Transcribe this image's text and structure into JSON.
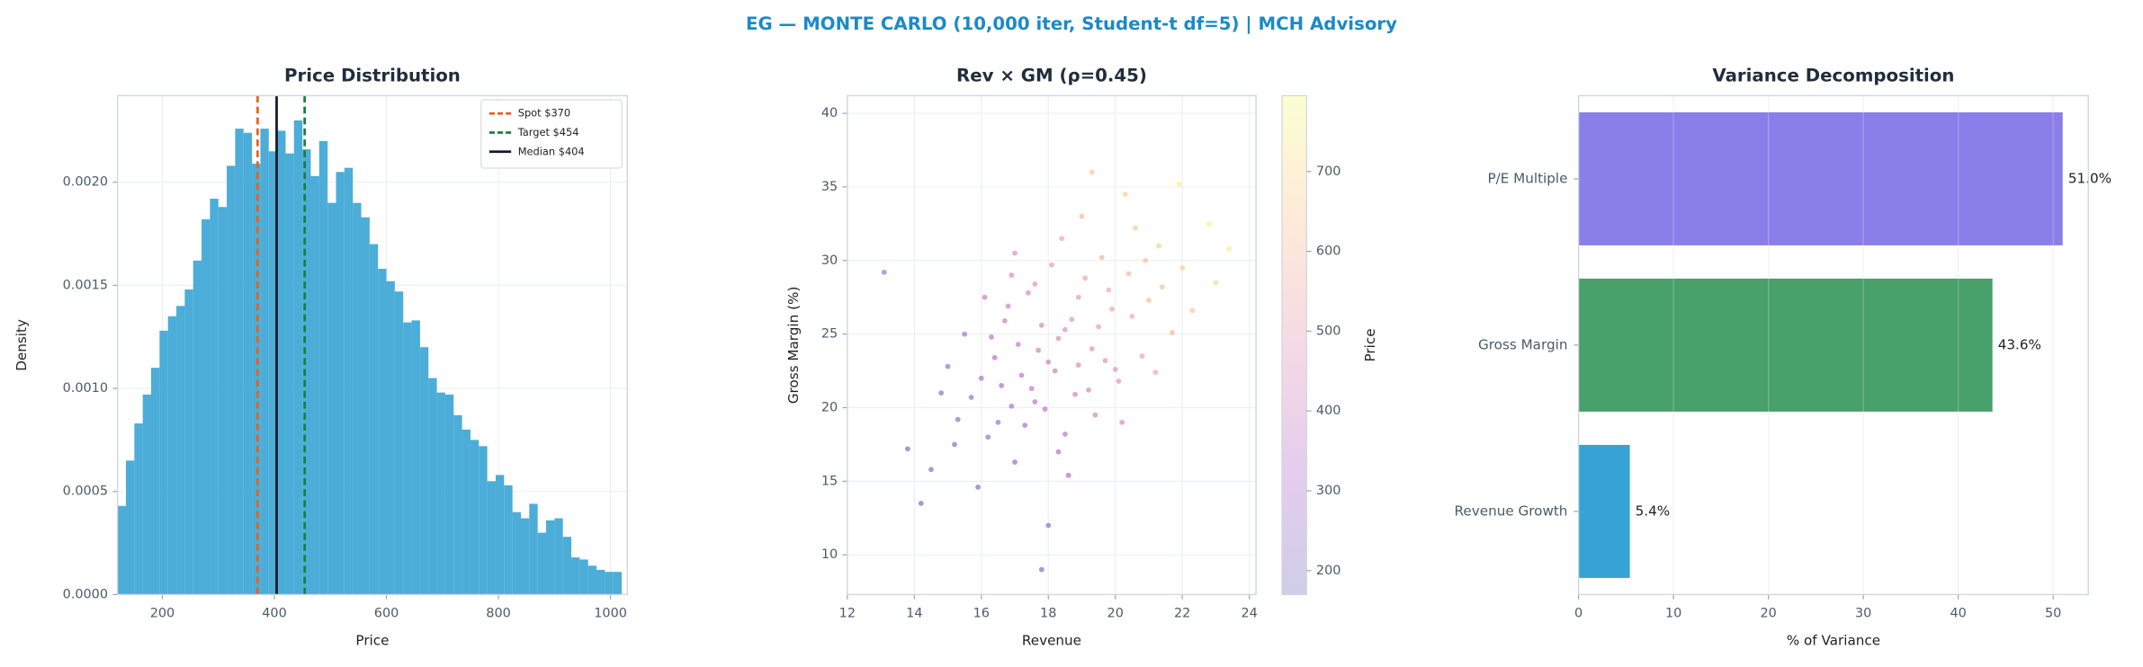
{
  "title": "EG — MONTE CARLO (10,000 iter, Student-t df=5) | MCH Advisory",
  "chart_data": [
    {
      "type": "histogram",
      "title": "Price Distribution",
      "xlabel": "Price",
      "ylabel": "Density",
      "color": "#4badd8",
      "bins": [
        120,
        135,
        150,
        165,
        180,
        195,
        210,
        225,
        240,
        255,
        270,
        285,
        300,
        315,
        330,
        345,
        360,
        375,
        390,
        405,
        420,
        435,
        450,
        465,
        480,
        495,
        510,
        525,
        540,
        555,
        570,
        585,
        600,
        615,
        630,
        645,
        660,
        675,
        690,
        705,
        720,
        735,
        750,
        765,
        780,
        795,
        810,
        825,
        840,
        855,
        870,
        885,
        900,
        915,
        930,
        945,
        960,
        975,
        990,
        1005,
        1020
      ],
      "values": [
        0.00043,
        0.00065,
        0.00083,
        0.00097,
        0.0011,
        0.00128,
        0.00135,
        0.0014,
        0.00148,
        0.00162,
        0.00182,
        0.00192,
        0.00188,
        0.00208,
        0.00226,
        0.00224,
        0.00209,
        0.00226,
        0.00215,
        0.00225,
        0.00214,
        0.0023,
        0.00216,
        0.00203,
        0.0022,
        0.0019,
        0.00205,
        0.00207,
        0.0019,
        0.00183,
        0.0017,
        0.00158,
        0.00152,
        0.00147,
        0.00132,
        0.00133,
        0.0012,
        0.00105,
        0.00098,
        0.00097,
        0.00087,
        0.0008,
        0.00075,
        0.00072,
        0.00055,
        0.00058,
        0.00053,
        0.0004,
        0.00037,
        0.00044,
        0.0003,
        0.00036,
        0.00037,
        0.00028,
        0.00018,
        0.00017,
        0.00014,
        0.00012,
        0.00011,
        0.00011
      ],
      "xlim": [
        120,
        1030
      ],
      "ylim": [
        0,
        0.00242
      ],
      "xticks": [
        200,
        400,
        600,
        800,
        1000
      ],
      "yticks": [
        {
          "value": 0,
          "label": "0.0000"
        },
        {
          "value": 0.0005,
          "label": "0.0005"
        },
        {
          "value": 0.001,
          "label": "0.0010"
        },
        {
          "value": 0.0015,
          "label": "0.0015"
        },
        {
          "value": 0.002,
          "label": "0.0020"
        }
      ],
      "grid": true,
      "legend": "upper right",
      "lines": [
        {
          "name": "Spot $370",
          "value": 370,
          "color": "#e8601c",
          "style": "dashed"
        },
        {
          "name": "Target $454",
          "value": 454,
          "color": "#1b7f3b",
          "style": "dashed"
        },
        {
          "name": "Median $404",
          "value": 404,
          "color": "#111827",
          "style": "solid"
        }
      ]
    },
    {
      "type": "scatter",
      "title": "Rev × GM (ρ=0.45)",
      "xlabel": "Revenue",
      "ylabel": "Gross Margin (%)",
      "x": [
        18.2,
        16.5,
        19.8,
        17.1,
        20.5,
        15.2,
        21.3,
        18.9,
        17.6,
        16.0,
        19.3,
        22.0,
        14.5,
        18.5,
        17.8,
        20.1,
        16.8,
        19.0,
        15.7,
        21.0,
        18.0,
        17.3,
        19.6,
        16.3,
        20.8,
        13.8,
        18.7,
        17.5,
        22.8,
        19.4,
        16.9,
        18.3,
        15.0,
        20.3,
        17.0,
        21.7,
        18.8,
        16.2,
        19.1,
        17.7,
        14.2,
        23.4,
        18.1,
        16.6,
        20.0,
        17.4,
        19.5,
        15.5,
        18.6,
        21.4,
        17.9,
        16.4,
        20.6,
        19.2,
        15.9,
        18.4,
        22.3,
        17.2,
        13.1,
        20.9,
        18.0,
        16.7,
        19.7,
        21.9,
        17.6,
        15.3,
        18.9,
        20.2,
        16.1,
        19.9,
        14.8,
        18.3,
        23.0,
        17.0,
        19.3,
        16.9,
        21.2,
        18.5,
        17.8,
        20.4
      ],
      "values": [
        22.5,
        19.0,
        28.0,
        24.3,
        26.2,
        17.5,
        31.0,
        27.5,
        20.4,
        22.0,
        24.0,
        29.5,
        15.8,
        18.2,
        25.6,
        21.8,
        26.9,
        33.0,
        20.7,
        27.3,
        23.1,
        18.8,
        30.2,
        24.8,
        23.5,
        17.2,
        26.0,
        21.3,
        32.5,
        19.5,
        29.0,
        24.7,
        22.8,
        34.5,
        16.3,
        25.1,
        20.9,
        18.0,
        28.8,
        23.9,
        13.5,
        30.8,
        29.7,
        21.5,
        22.6,
        27.8,
        25.5,
        25.0,
        15.4,
        28.2,
        19.9,
        23.4,
        32.2,
        21.2,
        14.6,
        31.5,
        26.6,
        22.2,
        29.2,
        30.0,
        12.0,
        25.9,
        23.2,
        35.2,
        28.4,
        19.2,
        22.9,
        19.0,
        27.5,
        26.7,
        21.0,
        17.0,
        28.5,
        30.5,
        36.0,
        20.1,
        22.4,
        25.3,
        9.0,
        29.1
      ],
      "color_values": [
        401,
        272,
        556,
        379,
        560,
        191,
        668,
        508,
        343,
        295,
        473,
        677,
        185,
        350,
        430,
        476,
        404,
        595,
        262,
        600,
        401,
        305,
        580,
        350,
        533,
        178,
        476,
        352,
        758,
        410,
        440,
        439,
        262,
        676,
        254,
        598,
        404,
        244,
        536,
        400,
        190,
        760,
        505,
        314,
        484,
        445,
        505,
        317,
        313,
        631,
        349,
        334,
        655,
        427,
        180,
        545,
        647,
        352,
        272,
        635,
        235,
        385,
        480,
        758,
        463,
        222,
        439,
        439,
        382,
        541,
        226,
        324,
        708,
        468,
        654,
        307,
        535,
        457,
        181,
        600
      ],
      "colormap": "plasma",
      "clim": [
        170,
        795
      ],
      "colorbar_label": "Price",
      "colorbar_ticks": [
        200,
        300,
        400,
        500,
        600,
        700
      ],
      "xlim": [
        12,
        24.2
      ],
      "ylim": [
        7.3,
        41.2
      ],
      "xticks": [
        12,
        14,
        16,
        18,
        20,
        22,
        24
      ],
      "yticks": [
        10,
        15,
        20,
        25,
        30,
        35,
        40
      ],
      "grid": true
    },
    {
      "type": "hbar",
      "title": "Variance Decomposition",
      "xlabel": "% of Variance",
      "categories": [
        "Revenue Growth",
        "Gross Margin",
        "P/E Multiple"
      ],
      "values": [
        5.4,
        43.6,
        51.0
      ],
      "value_labels": [
        "5.4%",
        "43.6%",
        "51.0%"
      ],
      "colors": [
        "#36a3d5",
        "#48a06b",
        "#8a7ee8"
      ],
      "xlim": [
        0,
        53.7
      ],
      "xticks": [
        0,
        10,
        20,
        30,
        40,
        50
      ],
      "grid": true
    }
  ]
}
